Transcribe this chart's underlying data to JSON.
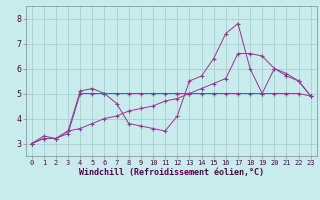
{
  "xlabel": "Windchill (Refroidissement éolien,°C)",
  "background_color": "#c8ecec",
  "grid_color": "#a8d0d0",
  "line_color": "#993399",
  "xlim": [
    -0.5,
    23.5
  ],
  "ylim": [
    2.5,
    8.5
  ],
  "yticks": [
    3,
    4,
    5,
    6,
    7,
    8
  ],
  "xticks": [
    0,
    1,
    2,
    3,
    4,
    5,
    6,
    7,
    8,
    9,
    10,
    11,
    12,
    13,
    14,
    15,
    16,
    17,
    18,
    19,
    20,
    21,
    22,
    23
  ],
  "line1_x": [
    0,
    1,
    2,
    3,
    4,
    5,
    6,
    7,
    8,
    9,
    10,
    11,
    12,
    13,
    14,
    15,
    16,
    17,
    18,
    19,
    20,
    21,
    22,
    23
  ],
  "line1_y": [
    3.0,
    3.3,
    3.2,
    3.5,
    5.1,
    5.2,
    5.0,
    4.6,
    3.8,
    3.7,
    3.6,
    3.5,
    4.1,
    5.5,
    5.7,
    6.4,
    7.4,
    7.8,
    6.0,
    5.0,
    6.0,
    5.8,
    5.5,
    4.9
  ],
  "line2_x": [
    0,
    1,
    2,
    3,
    4,
    5,
    6,
    7,
    8,
    9,
    10,
    11,
    12,
    13,
    14,
    15,
    16,
    17,
    18,
    19,
    20,
    21,
    22,
    23
  ],
  "line2_y": [
    3.0,
    3.2,
    3.2,
    3.4,
    5.0,
    5.0,
    5.0,
    5.0,
    5.0,
    5.0,
    5.0,
    5.0,
    5.0,
    5.0,
    5.0,
    5.0,
    5.0,
    5.0,
    5.0,
    5.0,
    5.0,
    5.0,
    5.0,
    4.9
  ],
  "line3_x": [
    0,
    1,
    2,
    3,
    4,
    5,
    6,
    7,
    8,
    9,
    10,
    11,
    12,
    13,
    14,
    15,
    16,
    17,
    18,
    19,
    20,
    21,
    22,
    23
  ],
  "line3_y": [
    3.0,
    3.2,
    3.2,
    3.5,
    3.6,
    3.8,
    4.0,
    4.1,
    4.3,
    4.4,
    4.5,
    4.7,
    4.8,
    5.0,
    5.2,
    5.4,
    5.6,
    6.6,
    6.6,
    6.5,
    6.0,
    5.7,
    5.5,
    4.9
  ],
  "xlabel_fontsize": 6,
  "tick_fontsize": 5
}
